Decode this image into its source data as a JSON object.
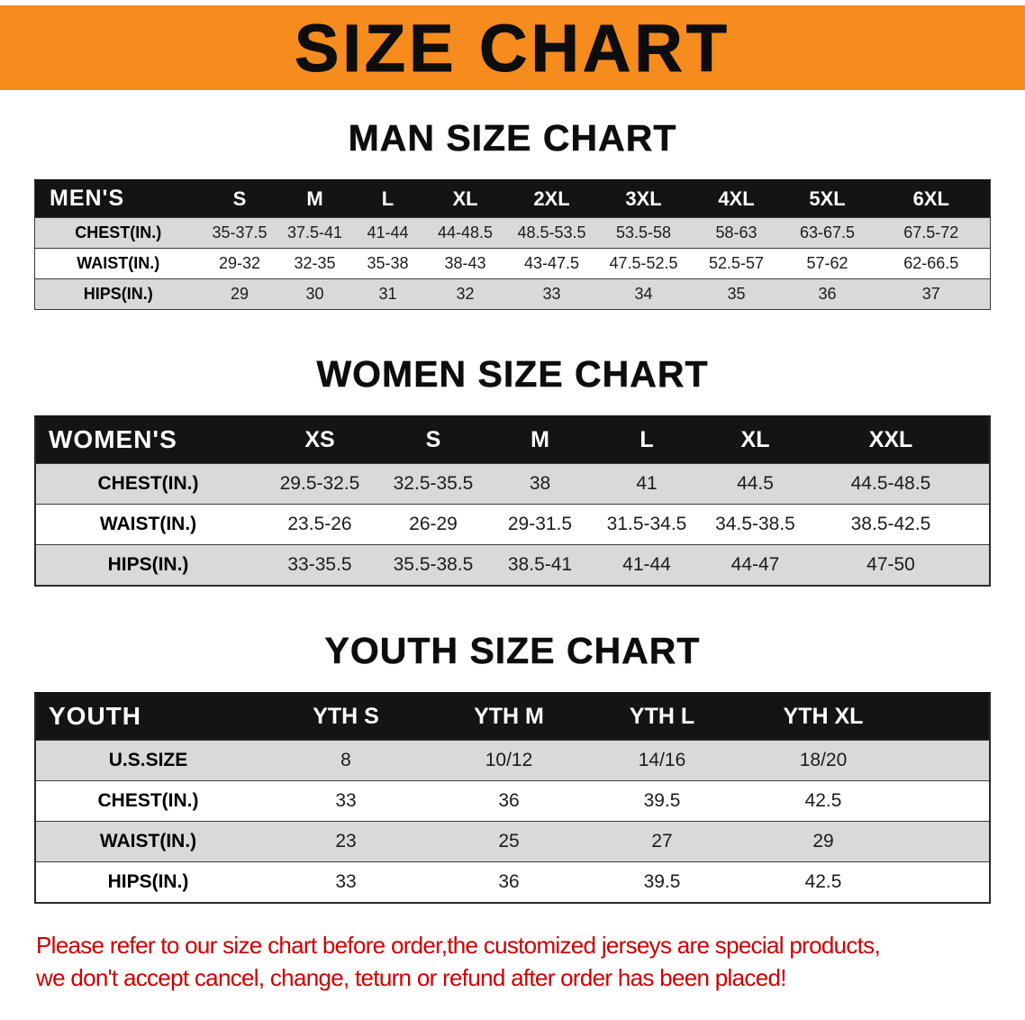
{
  "banner": {
    "title": "SIZE CHART",
    "bg_color": "#f68b1e",
    "text_color": "#0d0d0d"
  },
  "colors": {
    "table_header_bg": "#141414",
    "table_header_text": "#ffffff",
    "row_shaded": "#d9d9d9",
    "row_plain": "#ffffff",
    "disclaimer_text": "#cc0000"
  },
  "sections": [
    {
      "heading": "MAN SIZE CHART",
      "table": {
        "header": [
          "MEN'S",
          "S",
          "M",
          "L",
          "XL",
          "2XL",
          "3XL",
          "4XL",
          "5XL",
          "6XL"
        ],
        "rows": [
          [
            "CHEST(IN.)",
            "35-37.5",
            "37.5-41",
            "41-44",
            "44-48.5",
            "48.5-53.5",
            "53.5-58",
            "58-63",
            "63-67.5",
            "67.5-72"
          ],
          [
            "WAIST(IN.)",
            "29-32",
            "32-35",
            "35-38",
            "38-43",
            "43-47.5",
            "47.5-52.5",
            "52.5-57",
            "57-62",
            "62-66.5"
          ],
          [
            "HIPS(IN.)",
            "29",
            "30",
            "31",
            "32",
            "33",
            "34",
            "35",
            "36",
            "37"
          ]
        ]
      }
    },
    {
      "heading": "WOMEN SIZE CHART",
      "table": {
        "header": [
          "WOMEN'S",
          "XS",
          "S",
          "M",
          "L",
          "XL",
          "XXL"
        ],
        "rows": [
          [
            "CHEST(IN.)",
            "29.5-32.5",
            "32.5-35.5",
            "38",
            "41",
            "44.5",
            "44.5-48.5"
          ],
          [
            "WAIST(IN.)",
            "23.5-26",
            "26-29",
            "29-31.5",
            "31.5-34.5",
            "34.5-38.5",
            "38.5-42.5"
          ],
          [
            "HIPS(IN.)",
            "33-35.5",
            "35.5-38.5",
            "38.5-41",
            "41-44",
            "44-47",
            "47-50"
          ]
        ]
      }
    },
    {
      "heading": "YOUTH SIZE CHART",
      "table": {
        "header": [
          "YOUTH",
          "YTH S",
          "YTH M",
          "YTH L",
          "YTH XL"
        ],
        "rows": [
          [
            "U.S.SIZE",
            "8",
            "10/12",
            "14/16",
            "18/20"
          ],
          [
            "CHEST(IN.)",
            "33",
            "36",
            "39.5",
            "42.5"
          ],
          [
            "WAIST(IN.)",
            "23",
            "25",
            "27",
            "29"
          ],
          [
            "HIPS(IN.)",
            "33",
            "36",
            "39.5",
            "42.5"
          ]
        ]
      }
    }
  ],
  "disclaimer": {
    "line1": "Please refer to our size chart before order,the customized jerseys are special products,",
    "line2": "we don't accept cancel, change, teturn or refund after order has been placed!"
  }
}
